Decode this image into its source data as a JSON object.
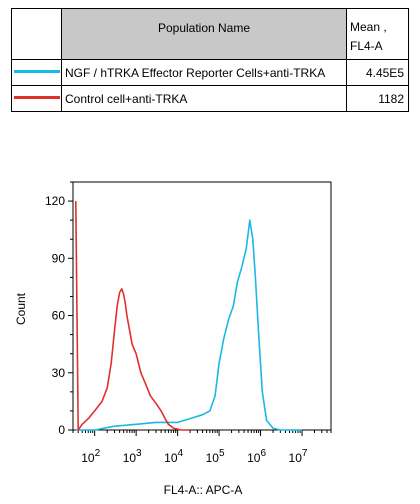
{
  "table": {
    "header_population": "Population Name",
    "header_stat_line1": "Mean ,",
    "header_stat_line2": "FL4-A",
    "rows": [
      {
        "name": "NGF / hTRKA Effector Reporter Cells+anti-TRKA",
        "value": "4.45E5",
        "color": "#1ab8e6"
      },
      {
        "name": "Control cell+anti-TRKA",
        "value": "1182",
        "color": "#e0302c"
      }
    ]
  },
  "chart_data": {
    "type": "line",
    "xlabel": "FL4-A:: APC-A",
    "ylabel": "Count",
    "x_scale": "log",
    "x_ticks": [
      {
        "base": "10",
        "exp": "2",
        "value": 100
      },
      {
        "base": "10",
        "exp": "3",
        "value": 1000
      },
      {
        "base": "10",
        "exp": "4",
        "value": 10000
      },
      {
        "base": "10",
        "exp": "5",
        "value": 100000
      },
      {
        "base": "10",
        "exp": "6",
        "value": 1000000
      },
      {
        "base": "10",
        "exp": "7",
        "value": 10000000
      }
    ],
    "xlim": [
      30,
      50000000
    ],
    "ylim": [
      0,
      130
    ],
    "y_ticks": [
      0,
      30,
      60,
      90,
      120
    ],
    "series": [
      {
        "name": "NGF / hTRKA Effector Reporter Cells+anti-TRKA",
        "color": "#1ab8e6",
        "x": [
          35,
          100,
          300,
          1000,
          3000,
          10000,
          20000,
          40000,
          60000,
          80000,
          100000,
          130000,
          170000,
          220000,
          280000,
          350000,
          450000,
          550000,
          650000,
          750000,
          900000,
          1100000,
          1400000,
          2000000,
          3000000,
          10000000
        ],
        "y": [
          0,
          0,
          2,
          3,
          4,
          4,
          6,
          8,
          10,
          18,
          35,
          48,
          58,
          65,
          78,
          85,
          95,
          110,
          100,
          80,
          50,
          20,
          5,
          1,
          0,
          0
        ]
      },
      {
        "name": "Control cell+anti-TRKA",
        "color": "#e0302c",
        "x": [
          35,
          40,
          50,
          70,
          100,
          150,
          200,
          250,
          300,
          350,
          400,
          450,
          500,
          550,
          600,
          700,
          800,
          1000,
          1300,
          1700,
          2200,
          3000,
          4000,
          5000,
          6000,
          8000,
          12000,
          20000
        ],
        "y": [
          120,
          0,
          3,
          6,
          10,
          15,
          22,
          35,
          52,
          65,
          72,
          74,
          71,
          66,
          60,
          52,
          45,
          40,
          30,
          24,
          18,
          14,
          10,
          6,
          3,
          1,
          0,
          0
        ]
      }
    ]
  }
}
